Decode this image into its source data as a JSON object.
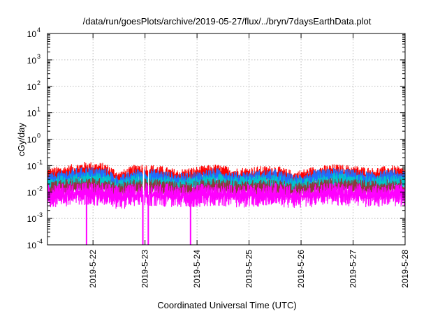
{
  "chart_data": {
    "type": "line",
    "title": "/data/run/goesPlots/archive/2019-05-27/flux/../bryn/7daysEarthData.plot",
    "xlabel": "Coordinated Universal Time (UTC)",
    "ylabel": "cGy/day",
    "yscale": "log",
    "ylim": [
      0.0001,
      10000
    ],
    "xlim": [
      "2019-05-21T03:00",
      "2019-05-28T00:00"
    ],
    "x_ticks": [
      "2019-5-22",
      "2019-5-23",
      "2019-5-24",
      "2019-5-25",
      "2019-5-26",
      "2019-5-27",
      "2019-5-28"
    ],
    "y_ticks": [
      {
        "base": "10",
        "exp": "-4",
        "value": 0.0001
      },
      {
        "base": "10",
        "exp": "-3",
        "value": 0.001
      },
      {
        "base": "10",
        "exp": "-2",
        "value": 0.01
      },
      {
        "base": "10",
        "exp": "-1",
        "value": 0.1
      },
      {
        "base": "10",
        "exp": "0",
        "value": 1
      },
      {
        "base": "10",
        "exp": "1",
        "value": 10
      },
      {
        "base": "10",
        "exp": "2",
        "value": 100
      },
      {
        "base": "10",
        "exp": "3",
        "value": 1000
      },
      {
        "base": "10",
        "exp": "4",
        "value": 10000
      }
    ],
    "grid": true,
    "legend": "none",
    "series": [
      {
        "color": "#ff0000",
        "x": [
          "2019-05-21T03:00",
          "2019-05-21T12:00",
          "2019-05-21T21:00",
          "2019-05-22T06:00",
          "2019-05-22T12:00",
          "2019-05-22T21:00",
          "2019-05-23T06:00",
          "2019-05-23T15:00",
          "2019-05-24T00:00",
          "2019-05-24T09:00",
          "2019-05-24T18:00",
          "2019-05-25T03:00",
          "2019-05-25T12:00",
          "2019-05-25T21:00",
          "2019-05-26T06:00",
          "2019-05-26T15:00",
          "2019-05-27T00:00",
          "2019-05-27T09:00",
          "2019-05-27T18:00",
          "2019-05-28T00:00"
        ],
        "y": [
          0.04,
          0.05,
          0.07,
          0.06,
          0.03,
          0.06,
          0.05,
          0.035,
          0.045,
          0.055,
          0.04,
          0.045,
          0.05,
          0.03,
          0.045,
          0.055,
          0.05,
          0.04,
          0.05,
          0.04
        ]
      },
      {
        "color": "#1e6fff",
        "x": [
          "2019-05-21T03:00",
          "2019-05-21T12:00",
          "2019-05-21T21:00",
          "2019-05-22T06:00",
          "2019-05-22T12:00",
          "2019-05-22T21:00",
          "2019-05-23T06:00",
          "2019-05-23T15:00",
          "2019-05-24T00:00",
          "2019-05-24T09:00",
          "2019-05-24T18:00",
          "2019-05-25T03:00",
          "2019-05-25T12:00",
          "2019-05-25T21:00",
          "2019-05-26T06:00",
          "2019-05-26T15:00",
          "2019-05-27T00:00",
          "2019-05-27T09:00",
          "2019-05-27T18:00",
          "2019-05-28T00:00"
        ],
        "y": [
          0.025,
          0.035,
          0.045,
          0.04,
          0.02,
          0.04,
          0.035,
          0.025,
          0.03,
          0.04,
          0.028,
          0.032,
          0.036,
          0.022,
          0.032,
          0.04,
          0.036,
          0.028,
          0.035,
          0.03
        ]
      },
      {
        "color": "#00c8c8",
        "x": [
          "2019-05-21T03:00",
          "2019-05-21T12:00",
          "2019-05-21T21:00",
          "2019-05-22T06:00",
          "2019-05-22T12:00",
          "2019-05-22T21:00",
          "2019-05-23T06:00",
          "2019-05-23T15:00",
          "2019-05-24T00:00",
          "2019-05-24T09:00",
          "2019-05-24T18:00",
          "2019-05-25T03:00",
          "2019-05-25T12:00",
          "2019-05-25T21:00",
          "2019-05-26T06:00",
          "2019-05-26T15:00",
          "2019-05-27T00:00",
          "2019-05-27T09:00",
          "2019-05-27T18:00",
          "2019-05-28T00:00"
        ],
        "y": [
          0.018,
          0.022,
          0.028,
          0.025,
          0.015,
          0.025,
          0.022,
          0.017,
          0.02,
          0.025,
          0.019,
          0.021,
          0.023,
          0.016,
          0.021,
          0.026,
          0.023,
          0.019,
          0.022,
          0.02
        ]
      },
      {
        "color": "#8b3a3a",
        "x": [
          "2019-05-21T03:00",
          "2019-05-21T12:00",
          "2019-05-21T21:00",
          "2019-05-22T06:00",
          "2019-05-22T12:00",
          "2019-05-22T21:00",
          "2019-05-23T06:00",
          "2019-05-23T15:00",
          "2019-05-24T00:00",
          "2019-05-24T09:00",
          "2019-05-24T18:00",
          "2019-05-25T03:00",
          "2019-05-25T12:00",
          "2019-05-25T21:00",
          "2019-05-26T06:00",
          "2019-05-26T15:00",
          "2019-05-27T00:00",
          "2019-05-27T09:00",
          "2019-05-27T18:00",
          "2019-05-28T00:00"
        ],
        "y": [
          0.012,
          0.015,
          0.018,
          0.016,
          0.011,
          0.016,
          0.015,
          0.012,
          0.014,
          0.016,
          0.013,
          0.014,
          0.015,
          0.011,
          0.014,
          0.017,
          0.015,
          0.013,
          0.015,
          0.014
        ]
      },
      {
        "color": "#ff00ff",
        "x": [
          "2019-05-21T03:00",
          "2019-05-21T12:00",
          "2019-05-21T21:00",
          "2019-05-22T06:00",
          "2019-05-22T12:00",
          "2019-05-22T21:00",
          "2019-05-23T06:00",
          "2019-05-23T15:00",
          "2019-05-24T00:00",
          "2019-05-24T09:00",
          "2019-05-24T18:00",
          "2019-05-25T03:00",
          "2019-05-25T12:00",
          "2019-05-25T21:00",
          "2019-05-26T06:00",
          "2019-05-26T15:00",
          "2019-05-27T00:00",
          "2019-05-27T09:00",
          "2019-05-27T18:00",
          "2019-05-28T00:00"
        ],
        "y": [
          0.007,
          0.008,
          0.009,
          0.008,
          0.006,
          0.008,
          0.008,
          0.007,
          0.0075,
          0.0085,
          0.007,
          0.0075,
          0.008,
          0.0065,
          0.0075,
          0.0085,
          0.008,
          0.007,
          0.008,
          0.0075
        ],
        "dropouts": [
          "2019-05-21T21:00",
          "2019-05-22T23:00",
          "2019-05-23T01:30",
          "2019-05-23T21:00"
        ],
        "dropout_value": 0.0001
      }
    ]
  }
}
